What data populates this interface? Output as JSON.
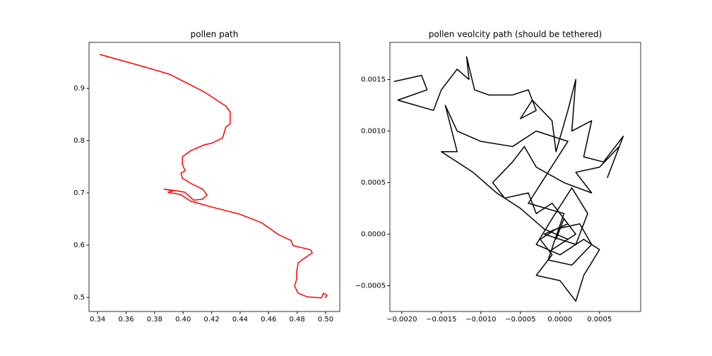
{
  "chart_data": [
    {
      "type": "line",
      "title": "pollen path",
      "series": [
        {
          "color": "#ff0000",
          "x": [
            0.3415,
            0.373,
            0.3905,
            0.415,
            0.43,
            0.433,
            0.433,
            0.43,
            0.4277,
            0.42,
            0.415,
            0.4055,
            0.3995,
            0.3995,
            0.4014,
            0.3985,
            0.3995,
            0.4055,
            0.4138,
            0.4168,
            0.4138,
            0.4074,
            0.4014,
            0.3955,
            0.3866,
            0.393,
            0.3895,
            0.398,
            0.4055,
            0.42,
            0.44,
            0.455,
            0.467,
            0.4757,
            0.4772,
            0.4896,
            0.4906,
            0.4846,
            0.4807,
            0.4797,
            0.4797,
            0.4782,
            0.4807,
            0.4871,
            0.497,
            0.4985,
            0.501,
            0.4995
          ],
          "values": [
            0.965,
            0.941,
            0.927,
            0.893,
            0.866,
            0.855,
            0.832,
            0.826,
            0.805,
            0.795,
            0.792,
            0.781,
            0.769,
            0.755,
            0.742,
            0.738,
            0.728,
            0.718,
            0.707,
            0.696,
            0.688,
            0.686,
            0.701,
            0.704,
            0.707,
            0.704,
            0.701,
            0.697,
            0.684,
            0.673,
            0.659,
            0.643,
            0.62,
            0.609,
            0.599,
            0.591,
            0.585,
            0.574,
            0.566,
            0.549,
            0.535,
            0.522,
            0.508,
            0.501,
            0.499,
            0.508,
            0.504,
            0.499
          ]
        }
      ],
      "xlim": [
        0.334,
        0.5099
      ],
      "ylim": [
        0.473,
        0.988
      ],
      "xticks": [
        0.34,
        0.36,
        0.38,
        {
          "value": 0.4,
          "label": "0.40"
        },
        0.42,
        0.44,
        0.46,
        0.48,
        {
          "value": 0.5,
          "label": "0.50"
        }
      ],
      "yticks": [
        0.5,
        0.6,
        0.7,
        0.8,
        0.9
      ]
    },
    {
      "type": "line",
      "title": "pollen veolcity path (should be tethered)",
      "series": [
        {
          "color": "#000000",
          "x": [
            -0.0021,
            -0.00175,
            -0.00168,
            -0.00205,
            -0.0016,
            -0.0015,
            -0.0013,
            -0.00115,
            -0.00118,
            -0.00108,
            -0.0009,
            -0.0006,
            -0.0004,
            -0.0003,
            -0.0005,
            -0.00035,
            -0.0001,
            -5e-05,
            0.0001,
            0.0002,
            0.00015,
            0.0004,
            0.0003,
            0.00055,
            0.0008,
            0.0006,
            0.00075,
            0.0005,
            0.0002,
            0.0004,
            5e-05,
            -0.0003,
            -0.00045,
            -0.0006,
            -0.00085,
            -0.0007,
            -0.0004,
            -0.0003,
            -0.0001,
            0.0001,
            -0.0002,
            0.0002,
            0.00035,
            0.00015,
            -0.0001,
            -0.0003,
            0,
            0.0003,
            0.0005,
            0.0003,
            0.0002,
            0,
            -0.0003,
            -0.0001,
            -0.00025,
            -5e-05,
            0.00025,
            0.0004,
            0.00015,
            -0.00015,
            5e-05,
            -0.0004,
            -0.00015,
            0.0001,
            -0.0003,
            -0.0006,
            -0.001,
            -0.0013,
            -0.00145,
            -0.0013,
            -0.0015,
            -0.0011,
            -0.0008,
            -0.0005,
            -0.0002,
            0.0001,
            -0.0001,
            0.0002,
            5e-05,
            -5e-05
          ],
          "values": [
            0.00148,
            0.00154,
            0.0014,
            0.0013,
            0.0012,
            0.0014,
            0.0016,
            0.0015,
            0.00172,
            0.0014,
            0.00135,
            0.00135,
            0.0014,
            0.0012,
            0.00112,
            0.0013,
            0.0011,
            0.0008,
            0.0012,
            0.0015,
            0.001,
            0.0011,
            0.00075,
            0.0007,
            0.00095,
            0.00055,
            0.00085,
            0.00065,
            0.0006,
            0.0004,
            0.0005,
            0.00065,
            0.00085,
            0.0007,
            0.0005,
            0.00035,
            0.0004,
            0.0002,
            0.0003,
            0.0001,
            0,
            -0.0001,
            0.0002,
            0.00045,
            0.00015,
            -0.0001,
            -0.0002,
            -5e-05,
            -0.00015,
            -0.0004,
            -0.00065,
            -0.00045,
            -0.0004,
            -0.0002,
            -5e-05,
            5e-05,
            0.0001,
            -0.0001,
            -0.0003,
            -0.00025,
            0.0002,
            0.0003,
            0.0006,
            0.0009,
            0.001,
            0.00085,
            0.0009,
            0.001,
            0.00125,
            0.0008,
            0.0008,
            0.0006,
            0.0004,
            0.00025,
            5e-05,
            -5e-05,
            -0.00015,
            0,
            0.00015,
            -5e-05
          ]
        }
      ],
      "xlim": [
        -0.00215,
        0.00102
      ],
      "ylim": [
        -0.00075,
        0.00186
      ],
      "xticks": [
        {
          "value": -0.002,
          "label": "−0.0020"
        },
        {
          "value": -0.0015,
          "label": "−0.0015"
        },
        {
          "value": -0.001,
          "label": "−0.0010"
        },
        {
          "value": -0.0005,
          "label": "−0.0005"
        },
        {
          "value": 0,
          "label": "0.0000"
        },
        {
          "value": 0.0005,
          "label": "0.0005"
        }
      ],
      "yticks": [
        {
          "value": -0.0005,
          "label": "−0.0005"
        },
        {
          "value": 0,
          "label": "0.0000"
        },
        {
          "value": 0.0005,
          "label": "0.0005"
        },
        {
          "value": 0.001,
          "label": "0.0010"
        },
        {
          "value": 0.0015,
          "label": "0.0015"
        }
      ]
    }
  ]
}
